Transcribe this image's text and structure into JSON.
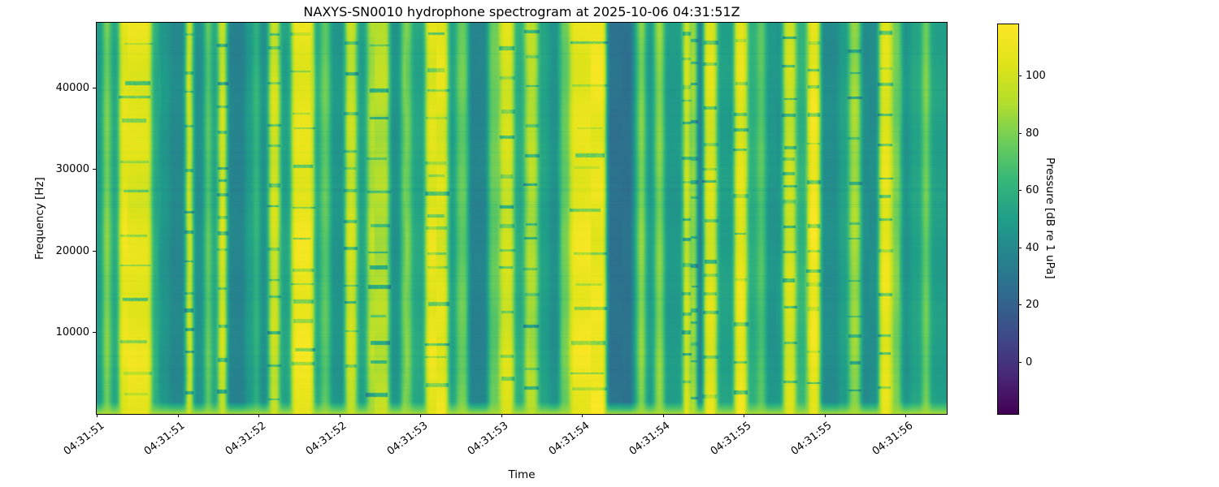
{
  "chart_data": {
    "type": "heatmap",
    "title": "NAXYS-SN0010 hydrophone spectrogram at 2025-10-06 04:31:51Z",
    "xlabel": "Time",
    "ylabel": "Frequency [Hz]",
    "ylim_hz": [
      0,
      48000
    ],
    "y_ticks_hz": [
      10000,
      20000,
      30000,
      40000
    ],
    "time_span_s": 5.256,
    "x_ticks": [
      [
        0.0,
        "04:31:51"
      ],
      [
        0.5,
        "04:31:51"
      ],
      [
        1.0,
        "04:31:52"
      ],
      [
        1.5,
        "04:31:52"
      ],
      [
        2.0,
        "04:31:53"
      ],
      [
        2.5,
        "04:31:53"
      ],
      [
        3.0,
        "04:31:54"
      ],
      [
        3.5,
        "04:31:54"
      ],
      [
        4.0,
        "04:31:55"
      ],
      [
        4.5,
        "04:31:55"
      ],
      [
        5.0,
        "04:31:56"
      ]
    ],
    "colorbar": {
      "label": "Pressure [dB re 1 uPa]",
      "ticks": [
        0,
        20,
        40,
        60,
        80,
        100
      ],
      "vmin": -18,
      "vmax": 118
    },
    "colormap": "viridis",
    "colormap_stops": [
      [
        0.0,
        "#440154"
      ],
      [
        0.1,
        "#482878"
      ],
      [
        0.2,
        "#3E4A89"
      ],
      [
        0.3,
        "#31688E"
      ],
      [
        0.4,
        "#26828E"
      ],
      [
        0.5,
        "#1F9E89"
      ],
      [
        0.6,
        "#35B779"
      ],
      [
        0.7,
        "#6DCD59"
      ],
      [
        0.8,
        "#B4DE2C"
      ],
      [
        0.9,
        "#DFE318"
      ],
      [
        1.0,
        "#FDE725"
      ]
    ],
    "bands_time_db": [
      [
        0.0,
        0.04,
        48
      ],
      [
        0.04,
        0.085,
        80
      ],
      [
        0.085,
        0.141,
        54
      ],
      [
        0.141,
        0.337,
        108
      ],
      [
        0.337,
        0.387,
        60
      ],
      [
        0.387,
        0.452,
        48
      ],
      [
        0.452,
        0.553,
        40
      ],
      [
        0.553,
        0.593,
        103
      ],
      [
        0.593,
        0.668,
        42
      ],
      [
        0.668,
        0.709,
        74
      ],
      [
        0.709,
        0.754,
        52
      ],
      [
        0.754,
        0.804,
        101
      ],
      [
        0.804,
        0.92,
        38
      ],
      [
        0.92,
        0.975,
        52
      ],
      [
        0.975,
        1.005,
        68
      ],
      [
        1.005,
        1.065,
        46
      ],
      [
        1.065,
        1.131,
        100
      ],
      [
        1.131,
        1.206,
        52
      ],
      [
        1.206,
        1.342,
        108
      ],
      [
        1.342,
        1.387,
        54
      ],
      [
        1.387,
        1.442,
        74
      ],
      [
        1.442,
        1.538,
        47
      ],
      [
        1.538,
        1.608,
        100
      ],
      [
        1.608,
        1.673,
        54
      ],
      [
        1.673,
        1.809,
        92
      ],
      [
        1.809,
        1.884,
        44
      ],
      [
        1.884,
        1.945,
        78
      ],
      [
        1.945,
        2.035,
        53
      ],
      [
        2.035,
        2.171,
        107
      ],
      [
        2.171,
        2.226,
        54
      ],
      [
        2.226,
        2.296,
        78
      ],
      [
        2.296,
        2.422,
        38
      ],
      [
        2.422,
        2.497,
        74
      ],
      [
        2.497,
        2.578,
        100
      ],
      [
        2.578,
        2.648,
        56
      ],
      [
        2.648,
        2.729,
        90
      ],
      [
        2.729,
        2.799,
        53
      ],
      [
        2.799,
        2.864,
        45
      ],
      [
        2.864,
        2.93,
        78
      ],
      [
        2.93,
        3.151,
        110
      ],
      [
        3.151,
        3.317,
        27
      ],
      [
        3.317,
        3.347,
        54
      ],
      [
        3.347,
        3.392,
        85
      ],
      [
        3.392,
        3.452,
        51
      ],
      [
        3.452,
        3.508,
        85
      ],
      [
        3.508,
        3.628,
        50
      ],
      [
        3.628,
        3.668,
        105
      ],
      [
        3.668,
        3.683,
        56
      ],
      [
        3.683,
        3.709,
        103
      ],
      [
        3.709,
        3.754,
        32
      ],
      [
        3.754,
        3.834,
        102
      ],
      [
        3.834,
        3.945,
        50
      ],
      [
        3.945,
        4.02,
        108
      ],
      [
        4.02,
        4.085,
        60
      ],
      [
        4.085,
        4.136,
        74
      ],
      [
        4.136,
        4.246,
        48
      ],
      [
        4.246,
        4.322,
        100
      ],
      [
        4.322,
        4.397,
        60
      ],
      [
        4.397,
        4.472,
        110
      ],
      [
        4.472,
        4.588,
        41
      ],
      [
        4.588,
        4.653,
        52
      ],
      [
        4.653,
        4.724,
        88
      ],
      [
        4.724,
        4.839,
        44
      ],
      [
        4.839,
        4.915,
        108
      ],
      [
        4.915,
        4.975,
        78
      ],
      [
        4.975,
        5.03,
        44
      ],
      [
        5.03,
        5.106,
        52
      ],
      [
        5.106,
        5.151,
        78
      ],
      [
        5.151,
        5.256,
        51
      ]
    ],
    "background_level_db": 50
  }
}
